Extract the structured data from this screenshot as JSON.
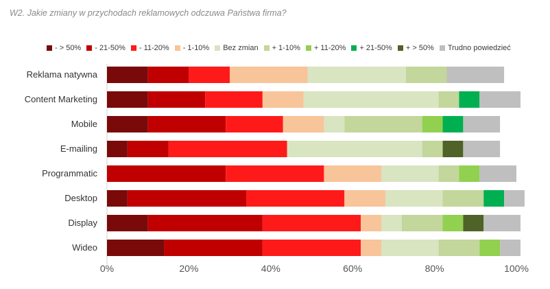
{
  "chart_data": {
    "type": "bar",
    "orientation": "horizontal",
    "stacked": true,
    "title": "W2. Jakie zmiany w przychodach reklamowych odczuwa Państwa firma?",
    "categories": [
      "Reklama natywna",
      "Content Marketing",
      "Mobile",
      "E-mailing",
      "Programmatic",
      "Desktop",
      "Display",
      "Wideo"
    ],
    "xlim": [
      0,
      100
    ],
    "xticks": [
      "0%",
      "20%",
      "40%",
      "60%",
      "80%",
      "100%"
    ],
    "legend_position": "top",
    "series": [
      {
        "name": "- > 50%",
        "color": "#7a0a0a",
        "values": [
          10,
          10,
          10,
          5,
          0,
          5,
          10,
          14
        ]
      },
      {
        "name": "- 21-50%",
        "color": "#c00000",
        "values": [
          10,
          14,
          19,
          10,
          29,
          29,
          28,
          24
        ]
      },
      {
        "name": "- 11-20%",
        "color": "#ff1a1a",
        "values": [
          10,
          14,
          14,
          29,
          24,
          24,
          24,
          24
        ]
      },
      {
        "name": "- 1-10%",
        "color": "#f8c49a",
        "values": [
          19,
          10,
          10,
          0,
          14,
          10,
          5,
          5
        ]
      },
      {
        "name": "Bez zmian",
        "color": "#d9e4c1",
        "values": [
          24,
          33,
          5,
          33,
          14,
          14,
          5,
          14
        ]
      },
      {
        "name": "+ 1-10%",
        "color": "#c3d69b",
        "values": [
          10,
          5,
          19,
          5,
          5,
          10,
          10,
          10
        ]
      },
      {
        "name": "+ 11-20%",
        "color": "#92d050",
        "values": [
          0,
          0,
          5,
          0,
          5,
          0,
          5,
          5
        ]
      },
      {
        "name": "+ 21-50%",
        "color": "#00b050",
        "values": [
          0,
          5,
          5,
          0,
          0,
          5,
          0,
          0
        ]
      },
      {
        "name": "+ > 50%",
        "color": "#4f6228",
        "values": [
          0,
          0,
          0,
          5,
          0,
          0,
          5,
          0
        ]
      },
      {
        "name": "Trudno powiedzieć",
        "color": "#bfbfbf",
        "values": [
          14,
          10,
          9,
          9,
          9,
          5,
          9,
          5
        ]
      }
    ]
  }
}
